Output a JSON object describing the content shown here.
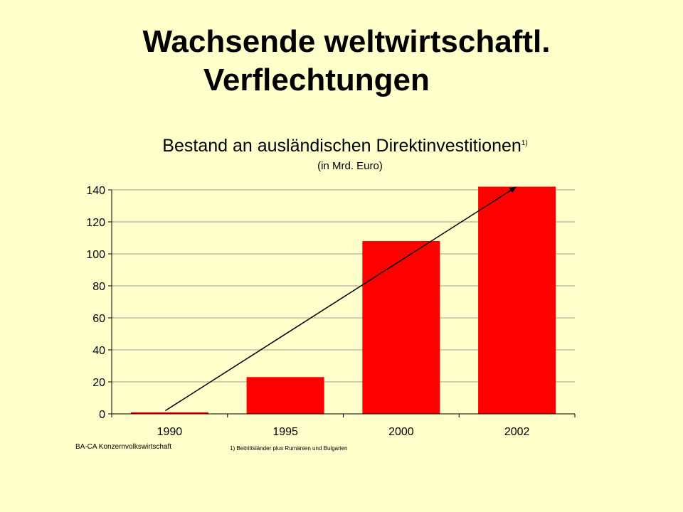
{
  "slide": {
    "title_line1": "Wachsende weltwirtschaftl.",
    "title_line2": "Verflechtungen",
    "background": "#ffffcc"
  },
  "chart_data": {
    "type": "bar",
    "title": "Bestand an ausländischen Direktinvestitionen",
    "title_footnote_marker": "1)",
    "subtitle": "(in Mrd. Euro)",
    "categories": [
      "1990",
      "1995",
      "2000",
      "2002"
    ],
    "values": [
      1,
      23,
      108,
      142
    ],
    "ylim": [
      0,
      140
    ],
    "yticks": [
      0,
      20,
      40,
      60,
      80,
      100,
      120,
      140
    ],
    "grid": true,
    "bar_color": "#ff0000",
    "trend_arrow": {
      "from": {
        "category": "1990",
        "value": 2
      },
      "to": {
        "category": "2002",
        "value": 142
      },
      "color": "#000000"
    }
  },
  "footer": {
    "source": "BA-CA Konzernvolkswirtschaft",
    "note": "1) Beitrittsländer plus Rumänien und Bulgarien"
  }
}
